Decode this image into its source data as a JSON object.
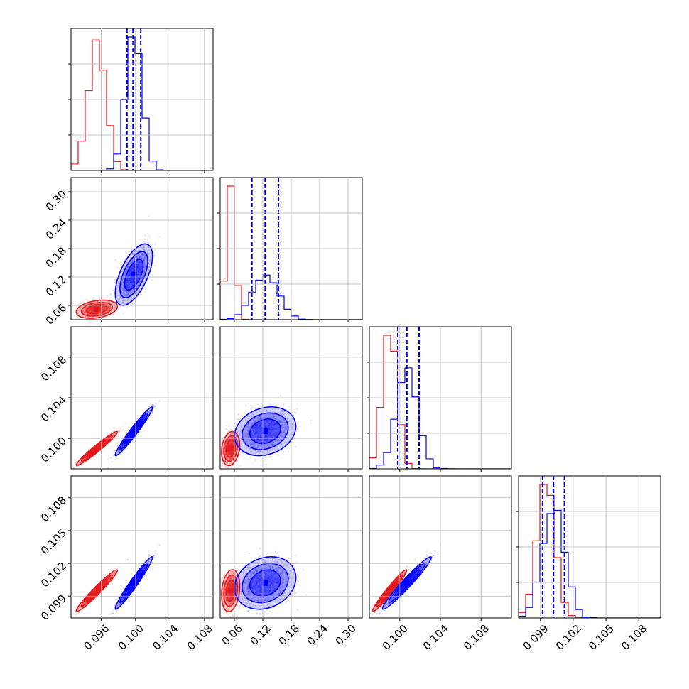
{
  "chart_data": {
    "type": "corner",
    "colors": {
      "red": "#e41a1c",
      "blue": "#0000ff"
    },
    "parameters": [
      {
        "range": [
          0.0925,
          0.109
        ],
        "ticks": [
          0.096,
          0.1,
          0.104,
          0.108
        ],
        "tick_labels": [
          "0.096",
          "0.100",
          "0.104",
          "0.108"
        ]
      },
      {
        "range": [
          0.03,
          0.33
        ],
        "ticks": [
          0.06,
          0.12,
          0.18,
          0.24,
          0.3
        ],
        "tick_labels": [
          "0.06",
          "0.12",
          "0.18",
          "0.24",
          "0.30"
        ]
      },
      {
        "range": [
          0.097,
          0.111
        ],
        "ticks": [
          0.1,
          0.104,
          0.108
        ],
        "tick_labels": [
          "0.100",
          "0.104",
          "0.108"
        ]
      },
      {
        "range": [
          0.097,
          0.11
        ],
        "ticks": [
          0.099,
          0.102,
          0.105,
          0.108
        ],
        "tick_labels": [
          "0.099",
          "0.102",
          "0.105",
          "0.108"
        ]
      }
    ],
    "y_tick_labels": {
      "1": [
        "0.06",
        "0.12",
        "0.18",
        "0.24",
        "0.30"
      ],
      "2": [
        "0.100",
        "0.104",
        "0.108"
      ],
      "3": [
        "0.099",
        "0.102",
        "0.105",
        "0.108"
      ]
    },
    "blue_quantiles": [
      [
        0.099,
        0.0997,
        0.1006
      ],
      [
        0.097,
        0.125,
        0.153
      ],
      [
        0.0998,
        0.1007,
        0.1019
      ],
      [
        0.0992,
        0.1002,
        0.1012
      ]
    ],
    "series": [
      {
        "name": "red",
        "color": "#e41a1c",
        "mean": [
          0.0955,
          0.052,
          0.099,
          0.0995
        ],
        "std": [
          0.001,
          0.008,
          0.0007,
          0.0008
        ],
        "corr": {
          "0-1": 0.3,
          "0-2": 0.97,
          "0-3": 0.97,
          "1-2": 0.2,
          "1-3": 0.2,
          "2-3": 0.97
        }
      },
      {
        "name": "blue",
        "color": "#0000ff",
        "mean": [
          0.0998,
          0.125,
          0.1007,
          0.1002
        ],
        "std": [
          0.0009,
          0.027,
          0.001,
          0.001
        ],
        "corr": {
          "0-1": 0.6,
          "0-2": 0.97,
          "0-3": 0.97,
          "1-2": 0.2,
          "1-3": 0.2,
          "2-3": 0.97
        }
      }
    ],
    "grid": true
  }
}
